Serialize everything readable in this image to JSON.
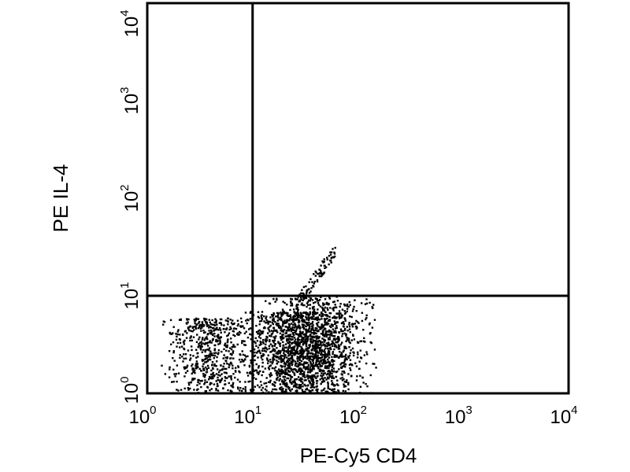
{
  "chart_data": {
    "type": "scatter",
    "title": "",
    "xlabel": "PE-Cy5 CD4",
    "ylabel": "PE IL-4",
    "x_scale": "log",
    "y_scale": "log",
    "xlim": [
      1,
      10000
    ],
    "ylim": [
      1,
      10000
    ],
    "grid": false,
    "legend": "none",
    "x_ticks": [
      {
        "base": "10",
        "exp": "0",
        "value": 1
      },
      {
        "base": "10",
        "exp": "1",
        "value": 10
      },
      {
        "base": "10",
        "exp": "2",
        "value": 100
      },
      {
        "base": "10",
        "exp": "3",
        "value": 1000
      },
      {
        "base": "10",
        "exp": "4",
        "value": 10000
      }
    ],
    "y_ticks": [
      {
        "base": "10",
        "exp": "0",
        "value": 1
      },
      {
        "base": "10",
        "exp": "1",
        "value": 10
      },
      {
        "base": "10",
        "exp": "2",
        "value": 100
      },
      {
        "base": "10",
        "exp": "3",
        "value": 1000
      },
      {
        "base": "10",
        "exp": "4",
        "value": 10000
      }
    ],
    "quadrant_gates": {
      "x": 10,
      "y": 10
    },
    "point_color": "#000000",
    "populations": [
      {
        "x_range": [
          1.3,
          12
        ],
        "y_range": [
          1,
          6
        ],
        "density": 650
      },
      {
        "x_range": [
          8,
          90
        ],
        "y_range": [
          1,
          7
        ],
        "density": 1300
      },
      {
        "x_range": [
          12,
          170
        ],
        "y_range": [
          1,
          10
        ],
        "density": 700
      },
      {
        "x_range": [
          25,
          60
        ],
        "y_range": [
          8,
          30
        ],
        "density": 90
      }
    ]
  }
}
